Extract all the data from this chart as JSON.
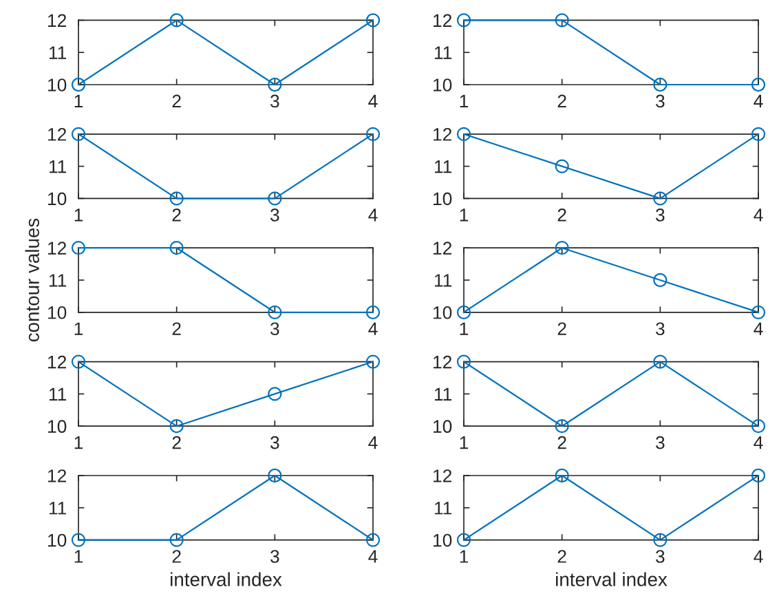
{
  "chart_data": [
    {
      "type": "line",
      "x": [
        1,
        2,
        3,
        4
      ],
      "series": [
        {
          "color": "#0072bd",
          "values": [
            10,
            12,
            10,
            12
          ]
        }
      ],
      "xlim": [
        1,
        4
      ],
      "ylim": [
        10,
        12
      ],
      "xticks": [
        1,
        2,
        3,
        4
      ],
      "yticks": [
        10,
        11,
        12
      ],
      "marker": "circle",
      "line_style": "solid"
    },
    {
      "type": "line",
      "x": [
        1,
        2,
        3,
        4
      ],
      "series": [
        {
          "color": "#0072bd",
          "values": [
            12,
            12,
            10,
            10
          ]
        }
      ],
      "xlim": [
        1,
        4
      ],
      "ylim": [
        10,
        12
      ],
      "xticks": [
        1,
        2,
        3,
        4
      ],
      "yticks": [
        10,
        11,
        12
      ],
      "marker": "circle",
      "line_style": "solid"
    },
    {
      "type": "line",
      "x": [
        1,
        2,
        3,
        4
      ],
      "series": [
        {
          "color": "#0072bd",
          "values": [
            12,
            10,
            10,
            12
          ]
        }
      ],
      "xlim": [
        1,
        4
      ],
      "ylim": [
        10,
        12
      ],
      "xticks": [
        1,
        2,
        3,
        4
      ],
      "yticks": [
        10,
        11,
        12
      ],
      "marker": "circle",
      "line_style": "solid"
    },
    {
      "type": "line",
      "x": [
        1,
        2,
        3,
        4
      ],
      "series": [
        {
          "color": "#0072bd",
          "values": [
            12,
            11,
            10,
            12
          ]
        }
      ],
      "xlim": [
        1,
        4
      ],
      "ylim": [
        10,
        12
      ],
      "xticks": [
        1,
        2,
        3,
        4
      ],
      "yticks": [
        10,
        11,
        12
      ],
      "marker": "circle",
      "line_style": "solid"
    },
    {
      "type": "line",
      "ylabel": "contour values",
      "x": [
        1,
        2,
        3,
        4
      ],
      "series": [
        {
          "color": "#0072bd",
          "values": [
            12,
            12,
            10,
            10
          ]
        }
      ],
      "xlim": [
        1,
        4
      ],
      "ylim": [
        10,
        12
      ],
      "xticks": [
        1,
        2,
        3,
        4
      ],
      "yticks": [
        10,
        11,
        12
      ],
      "marker": "circle",
      "line_style": "solid"
    },
    {
      "type": "line",
      "x": [
        1,
        2,
        3,
        4
      ],
      "series": [
        {
          "color": "#0072bd",
          "values": [
            10,
            12,
            11,
            10
          ]
        }
      ],
      "xlim": [
        1,
        4
      ],
      "ylim": [
        10,
        12
      ],
      "xticks": [
        1,
        2,
        3,
        4
      ],
      "yticks": [
        10,
        11,
        12
      ],
      "marker": "circle",
      "line_style": "solid"
    },
    {
      "type": "line",
      "x": [
        1,
        2,
        3,
        4
      ],
      "series": [
        {
          "color": "#0072bd",
          "values": [
            12,
            10,
            11,
            12
          ]
        }
      ],
      "xlim": [
        1,
        4
      ],
      "ylim": [
        10,
        12
      ],
      "xticks": [
        1,
        2,
        3,
        4
      ],
      "yticks": [
        10,
        11,
        12
      ],
      "marker": "circle",
      "line_style": "solid"
    },
    {
      "type": "line",
      "x": [
        1,
        2,
        3,
        4
      ],
      "series": [
        {
          "color": "#0072bd",
          "values": [
            12,
            10,
            12,
            10
          ]
        }
      ],
      "xlim": [
        1,
        4
      ],
      "ylim": [
        10,
        12
      ],
      "xticks": [
        1,
        2,
        3,
        4
      ],
      "yticks": [
        10,
        11,
        12
      ],
      "marker": "circle",
      "line_style": "solid"
    },
    {
      "type": "line",
      "xlabel": "interval index",
      "x": [
        1,
        2,
        3,
        4
      ],
      "series": [
        {
          "color": "#0072bd",
          "values": [
            10,
            10,
            12,
            10
          ]
        }
      ],
      "xlim": [
        1,
        4
      ],
      "ylim": [
        10,
        12
      ],
      "xticks": [
        1,
        2,
        3,
        4
      ],
      "yticks": [
        10,
        11,
        12
      ],
      "marker": "circle",
      "line_style": "solid"
    },
    {
      "type": "line",
      "xlabel": "interval index",
      "x": [
        1,
        2,
        3,
        4
      ],
      "series": [
        {
          "color": "#0072bd",
          "values": [
            10,
            12,
            10,
            12
          ]
        }
      ],
      "xlim": [
        1,
        4
      ],
      "ylim": [
        10,
        12
      ],
      "xticks": [
        1,
        2,
        3,
        4
      ],
      "yticks": [
        10,
        11,
        12
      ],
      "marker": "circle",
      "line_style": "solid"
    }
  ]
}
